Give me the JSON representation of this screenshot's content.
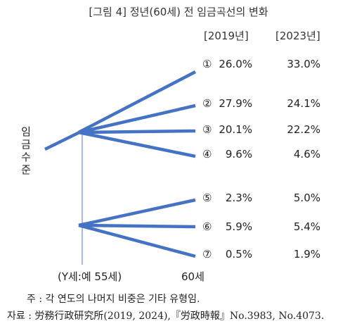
{
  "title": "[그림 4] 정년(60세) 전 임금곡선의 변화",
  "columns": {
    "col_2019": "[2019년]",
    "col_2023": "[2023년]"
  },
  "y_axis_label": "임금수준",
  "x_start_label": "(Y세:예 55세)",
  "x_end_label": "60세",
  "rows": [
    {
      "marker": "①",
      "v2019": "26.0%",
      "v2023": "33.0%"
    },
    {
      "marker": "②",
      "v2019": "27.9%",
      "v2023": "24.1%"
    },
    {
      "marker": "③",
      "v2019": "20.1%",
      "v2023": "22.2%"
    },
    {
      "marker": "④",
      "v2019": "9.6%",
      "v2023": "4.6%"
    },
    {
      "marker": "⑤",
      "v2019": "2.3%",
      "v2023": "5.0%"
    },
    {
      "marker": "⑥",
      "v2019": "5.9%",
      "v2023": "5.4%"
    },
    {
      "marker": "⑦",
      "v2019": "0.5%",
      "v2023": "1.9%"
    }
  ],
  "note": "주 : 각 연도의 나머지 비중은 기타 유형임.",
  "source": "자료 : 労務行政研究所(2019, 2024),『労政時報』No.3983, No.4073.",
  "colors": {
    "line": "#4472c4",
    "axis": "#6d8fc9"
  }
}
